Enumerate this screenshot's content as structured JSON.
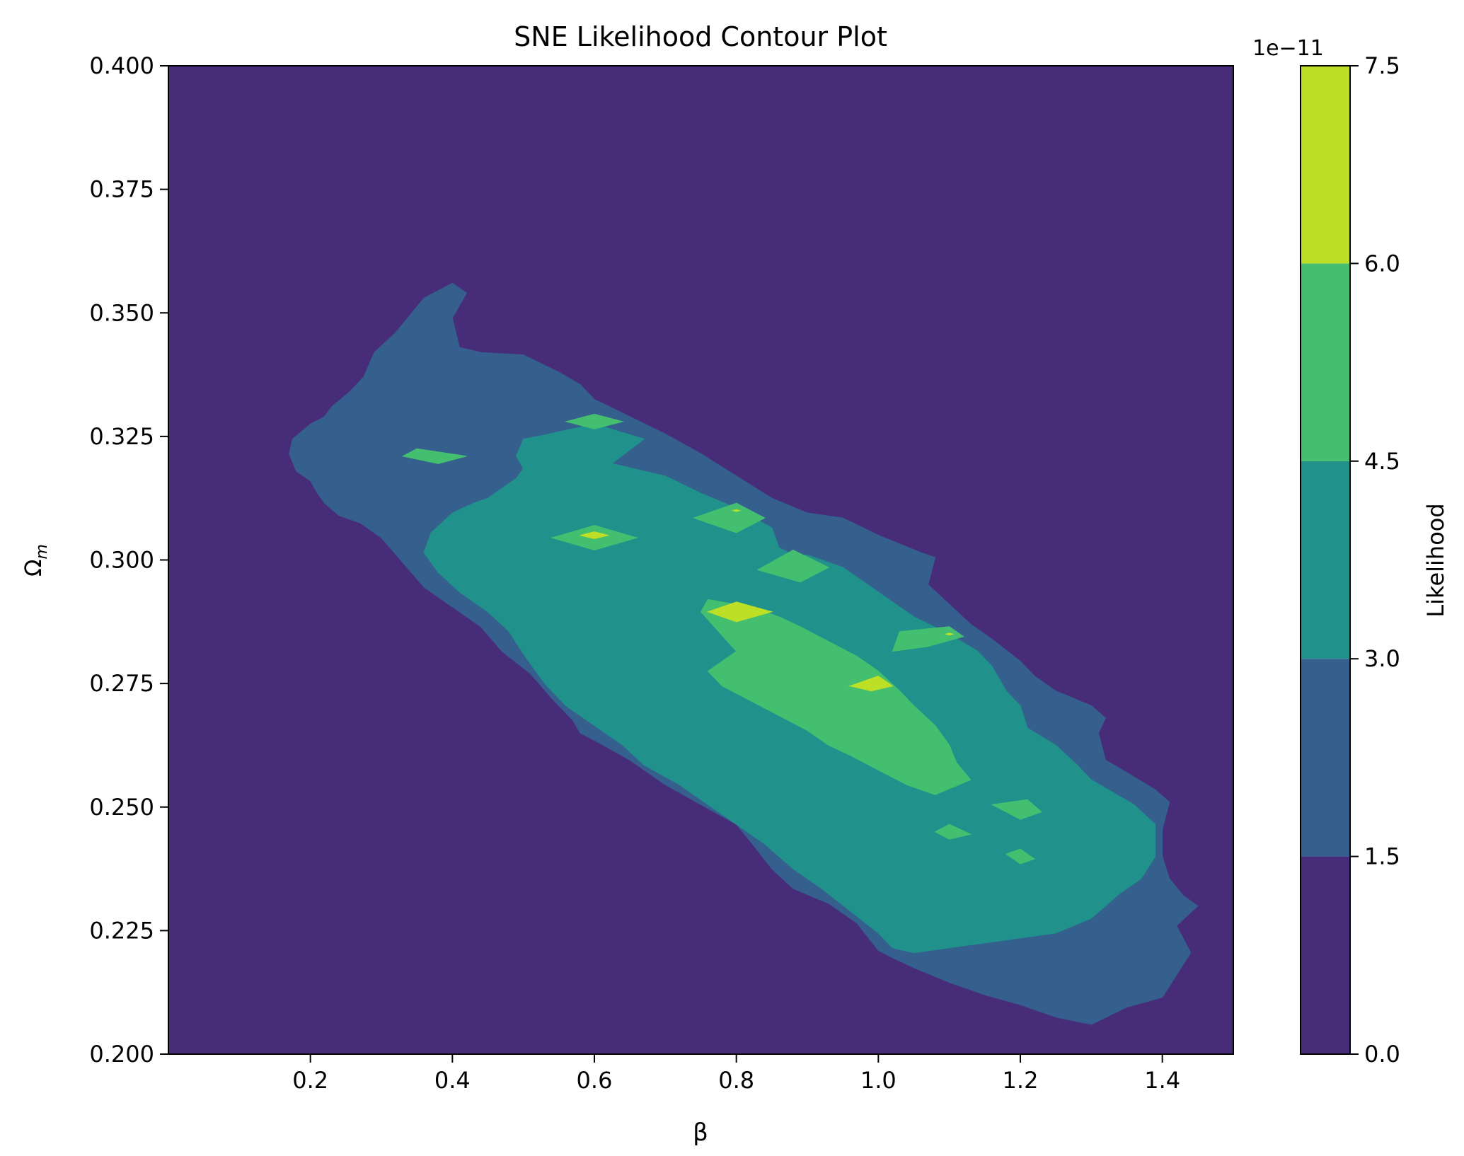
{
  "chart_data": {
    "type": "contour",
    "title": "SNE Likelihood Contour Plot",
    "xlabel": "β",
    "ylabel": "Ωm",
    "ylabel_main": "Ω",
    "ylabel_sub": "m",
    "xlim": [
      0.0,
      1.5
    ],
    "ylim": [
      0.2,
      0.4
    ],
    "xticks": [
      0.2,
      0.4,
      0.6,
      0.8,
      1.0,
      1.2,
      1.4
    ],
    "xtick_labels": [
      "0.2",
      "0.4",
      "0.6",
      "0.8",
      "1.0",
      "1.2",
      "1.4"
    ],
    "yticks": [
      0.2,
      0.225,
      0.25,
      0.275,
      0.3,
      0.325,
      0.35,
      0.375,
      0.4
    ],
    "ytick_labels": [
      "0.200",
      "0.225",
      "0.250",
      "0.275",
      "0.300",
      "0.325",
      "0.350",
      "0.375",
      "0.400"
    ],
    "colorbar": {
      "label": "Likelihood",
      "scale_label": "1e−11",
      "levels": [
        0.0,
        1.5,
        3.0,
        4.5,
        6.0,
        7.5
      ],
      "tick_labels": [
        "0.0",
        "1.5",
        "3.0",
        "4.5",
        "6.0",
        "7.5"
      ],
      "colors": [
        "#472c7a",
        "#355f8d",
        "#21918c",
        "#44bf70",
        "#bddf26"
      ]
    },
    "regions": [
      {
        "level_index": 1,
        "polygons": [
          [
            [
              0.36,
              0.353
            ],
            [
              0.4,
              0.356
            ],
            [
              0.42,
              0.354
            ],
            [
              0.4,
              0.349
            ],
            [
              0.41,
              0.343
            ],
            [
              0.44,
              0.342
            ],
            [
              0.5,
              0.3415
            ],
            [
              0.55,
              0.338
            ],
            [
              0.58,
              0.3355
            ],
            [
              0.6,
              0.3325
            ],
            [
              0.65,
              0.329
            ],
            [
              0.7,
              0.3255
            ],
            [
              0.75,
              0.3215
            ],
            [
              0.8,
              0.317
            ],
            [
              0.85,
              0.3125
            ],
            [
              0.9,
              0.3095
            ],
            [
              0.95,
              0.3085
            ],
            [
              1.0,
              0.305
            ],
            [
              1.06,
              0.3015
            ],
            [
              1.08,
              0.3005
            ],
            [
              1.07,
              0.295
            ],
            [
              1.1,
              0.291
            ],
            [
              1.13,
              0.287
            ],
            [
              1.16,
              0.284
            ],
            [
              1.2,
              0.2795
            ],
            [
              1.22,
              0.2765
            ],
            [
              1.25,
              0.2735
            ],
            [
              1.3,
              0.2705
            ],
            [
              1.32,
              0.268
            ],
            [
              1.31,
              0.265
            ],
            [
              1.32,
              0.2595
            ],
            [
              1.35,
              0.257
            ],
            [
              1.39,
              0.2535
            ],
            [
              1.41,
              0.251
            ],
            [
              1.4,
              0.2455
            ],
            [
              1.4,
              0.24
            ],
            [
              1.41,
              0.2355
            ],
            [
              1.43,
              0.232
            ],
            [
              1.45,
              0.23
            ],
            [
              1.42,
              0.226
            ],
            [
              1.44,
              0.2205
            ],
            [
              1.42,
              0.216
            ],
            [
              1.4,
              0.2115
            ],
            [
              1.35,
              0.2095
            ],
            [
              1.3,
              0.206
            ],
            [
              1.25,
              0.2075
            ],
            [
              1.2,
              0.21
            ],
            [
              1.15,
              0.212
            ],
            [
              1.1,
              0.2145
            ],
            [
              1.05,
              0.2175
            ],
            [
              1.02,
              0.2195
            ],
            [
              1.0,
              0.221
            ],
            [
              0.97,
              0.2265
            ],
            [
              0.93,
              0.2305
            ],
            [
              0.88,
              0.2335
            ],
            [
              0.85,
              0.2375
            ],
            [
              0.82,
              0.243
            ],
            [
              0.8,
              0.2465
            ],
            [
              0.75,
              0.2505
            ],
            [
              0.7,
              0.2545
            ],
            [
              0.65,
              0.2595
            ],
            [
              0.6,
              0.2635
            ],
            [
              0.58,
              0.265
            ],
            [
              0.57,
              0.2675
            ],
            [
              0.54,
              0.272
            ],
            [
              0.51,
              0.277
            ],
            [
              0.47,
              0.2815
            ],
            [
              0.44,
              0.2865
            ],
            [
              0.4,
              0.2905
            ],
            [
              0.36,
              0.2945
            ],
            [
              0.33,
              0.2995
            ],
            [
              0.3,
              0.3045
            ],
            [
              0.27,
              0.3075
            ],
            [
              0.24,
              0.309
            ],
            [
              0.22,
              0.3115
            ],
            [
              0.21,
              0.3135
            ],
            [
              0.2,
              0.316
            ],
            [
              0.18,
              0.318
            ],
            [
              0.17,
              0.3215
            ],
            [
              0.175,
              0.3245
            ],
            [
              0.2,
              0.3275
            ],
            [
              0.22,
              0.329
            ],
            [
              0.23,
              0.331
            ],
            [
              0.255,
              0.334
            ],
            [
              0.275,
              0.337
            ],
            [
              0.29,
              0.342
            ],
            [
              0.32,
              0.346
            ]
          ]
        ]
      },
      {
        "level_index": 2,
        "polygons": [
          [
            [
              0.52,
              0.325
            ],
            [
              0.6,
              0.3275
            ],
            [
              0.67,
              0.3245
            ],
            [
              0.62,
              0.319
            ],
            [
              0.625,
              0.3195
            ],
            [
              0.7,
              0.317
            ],
            [
              0.75,
              0.3135
            ],
            [
              0.8,
              0.3105
            ],
            [
              0.85,
              0.3065
            ],
            [
              0.86,
              0.3025
            ],
            [
              0.88,
              0.301
            ],
            [
              0.9,
              0.301
            ],
            [
              0.95,
              0.2985
            ],
            [
              1.0,
              0.2935
            ],
            [
              1.05,
              0.2885
            ],
            [
              1.1,
              0.285
            ],
            [
              1.14,
              0.2815
            ],
            [
              1.16,
              0.2785
            ],
            [
              1.18,
              0.2735
            ],
            [
              1.2,
              0.2705
            ],
            [
              1.21,
              0.266
            ],
            [
              1.25,
              0.2625
            ],
            [
              1.28,
              0.2585
            ],
            [
              1.3,
              0.2555
            ],
            [
              1.33,
              0.253
            ],
            [
              1.36,
              0.2505
            ],
            [
              1.39,
              0.2465
            ],
            [
              1.39,
              0.24
            ],
            [
              1.37,
              0.2355
            ],
            [
              1.34,
              0.2325
            ],
            [
              1.3,
              0.2275
            ],
            [
              1.25,
              0.2245
            ],
            [
              1.2,
              0.2235
            ],
            [
              1.15,
              0.2225
            ],
            [
              1.1,
              0.2215
            ],
            [
              1.05,
              0.2205
            ],
            [
              1.02,
              0.2215
            ],
            [
              1.0,
              0.2245
            ],
            [
              0.96,
              0.229
            ],
            [
              0.92,
              0.2335
            ],
            [
              0.88,
              0.2375
            ],
            [
              0.84,
              0.2425
            ],
            [
              0.8,
              0.2465
            ],
            [
              0.76,
              0.2505
            ],
            [
              0.72,
              0.2545
            ],
            [
              0.67,
              0.2585
            ],
            [
              0.64,
              0.2625
            ],
            [
              0.6,
              0.2665
            ],
            [
              0.56,
              0.2705
            ],
            [
              0.53,
              0.275
            ],
            [
              0.5,
              0.281
            ],
            [
              0.48,
              0.2855
            ],
            [
              0.45,
              0.2895
            ],
            [
              0.41,
              0.2935
            ],
            [
              0.38,
              0.2975
            ],
            [
              0.36,
              0.3015
            ],
            [
              0.37,
              0.3055
            ],
            [
              0.4,
              0.3095
            ],
            [
              0.43,
              0.3115
            ],
            [
              0.45,
              0.3125
            ],
            [
              0.47,
              0.3145
            ],
            [
              0.49,
              0.3165
            ],
            [
              0.5,
              0.3185
            ],
            [
              0.49,
              0.321
            ],
            [
              0.5,
              0.3245
            ]
          ]
        ]
      },
      {
        "level_index": 3,
        "polygons": [
          [
            [
              0.6,
              0.3295
            ],
            [
              0.64,
              0.328
            ],
            [
              0.6,
              0.3265
            ],
            [
              0.56,
              0.328
            ]
          ],
          [
            [
              0.35,
              0.3225
            ],
            [
              0.42,
              0.321
            ],
            [
              0.38,
              0.3195
            ],
            [
              0.33,
              0.321
            ]
          ],
          [
            [
              0.6,
              0.307
            ],
            [
              0.66,
              0.3045
            ],
            [
              0.6,
              0.302
            ],
            [
              0.54,
              0.3045
            ]
          ],
          [
            [
              0.8,
              0.3115
            ],
            [
              0.84,
              0.3085
            ],
            [
              0.8,
              0.3055
            ],
            [
              0.74,
              0.3085
            ]
          ],
          [
            [
              0.88,
              0.302
            ],
            [
              0.93,
              0.2985
            ],
            [
              0.89,
              0.2955
            ],
            [
              0.83,
              0.298
            ]
          ],
          [
            [
              0.76,
              0.292
            ],
            [
              0.82,
              0.2905
            ],
            [
              0.86,
              0.2885
            ],
            [
              0.89,
              0.2865
            ],
            [
              0.93,
              0.2835
            ],
            [
              0.97,
              0.2805
            ],
            [
              1.0,
              0.2775
            ],
            [
              1.03,
              0.2735
            ],
            [
              1.05,
              0.2705
            ],
            [
              1.08,
              0.2665
            ],
            [
              1.1,
              0.2625
            ],
            [
              1.11,
              0.259
            ],
            [
              1.13,
              0.2555
            ],
            [
              1.08,
              0.2525
            ],
            [
              1.04,
              0.2545
            ],
            [
              1.0,
              0.2575
            ],
            [
              0.96,
              0.2605
            ],
            [
              0.93,
              0.2625
            ],
            [
              0.9,
              0.2655
            ],
            [
              0.86,
              0.2685
            ],
            [
              0.82,
              0.2715
            ],
            [
              0.78,
              0.2745
            ],
            [
              0.76,
              0.2775
            ],
            [
              0.8,
              0.2815
            ],
            [
              0.75,
              0.2895
            ]
          ],
          [
            [
              1.03,
              0.2855
            ],
            [
              1.1,
              0.2865
            ],
            [
              1.12,
              0.2845
            ],
            [
              1.07,
              0.2825
            ],
            [
              1.02,
              0.2815
            ]
          ],
          [
            [
              1.21,
              0.2515
            ],
            [
              1.23,
              0.249
            ],
            [
              1.2,
              0.2475
            ],
            [
              1.16,
              0.2505
            ]
          ],
          [
            [
              1.1,
              0.2465
            ],
            [
              1.13,
              0.2445
            ],
            [
              1.1,
              0.2435
            ],
            [
              1.08,
              0.245
            ]
          ],
          [
            [
              1.2,
              0.2415
            ],
            [
              1.22,
              0.2395
            ],
            [
              1.2,
              0.2385
            ],
            [
              1.18,
              0.2405
            ]
          ]
        ]
      },
      {
        "level_index": 4,
        "polygons": [
          [
            [
              0.6,
              0.3057
            ],
            [
              0.62,
              0.305
            ],
            [
              0.6,
              0.3043
            ],
            [
              0.58,
              0.305
            ]
          ],
          [
            [
              0.8,
              0.2915
            ],
            [
              0.85,
              0.2895
            ],
            [
              0.8,
              0.2875
            ],
            [
              0.76,
              0.2895
            ]
          ],
          [
            [
              1.0,
              0.2765
            ],
            [
              1.02,
              0.2745
            ],
            [
              0.99,
              0.2735
            ],
            [
              0.96,
              0.2745
            ]
          ],
          [
            [
              0.8,
              0.3102
            ],
            [
              0.805,
              0.31
            ],
            [
              0.8,
              0.3098
            ],
            [
              0.795,
              0.31
            ]
          ],
          [
            [
              1.1,
              0.2852
            ],
            [
              1.105,
              0.285
            ],
            [
              1.1,
              0.2848
            ],
            [
              1.095,
              0.285
            ]
          ]
        ]
      }
    ]
  }
}
